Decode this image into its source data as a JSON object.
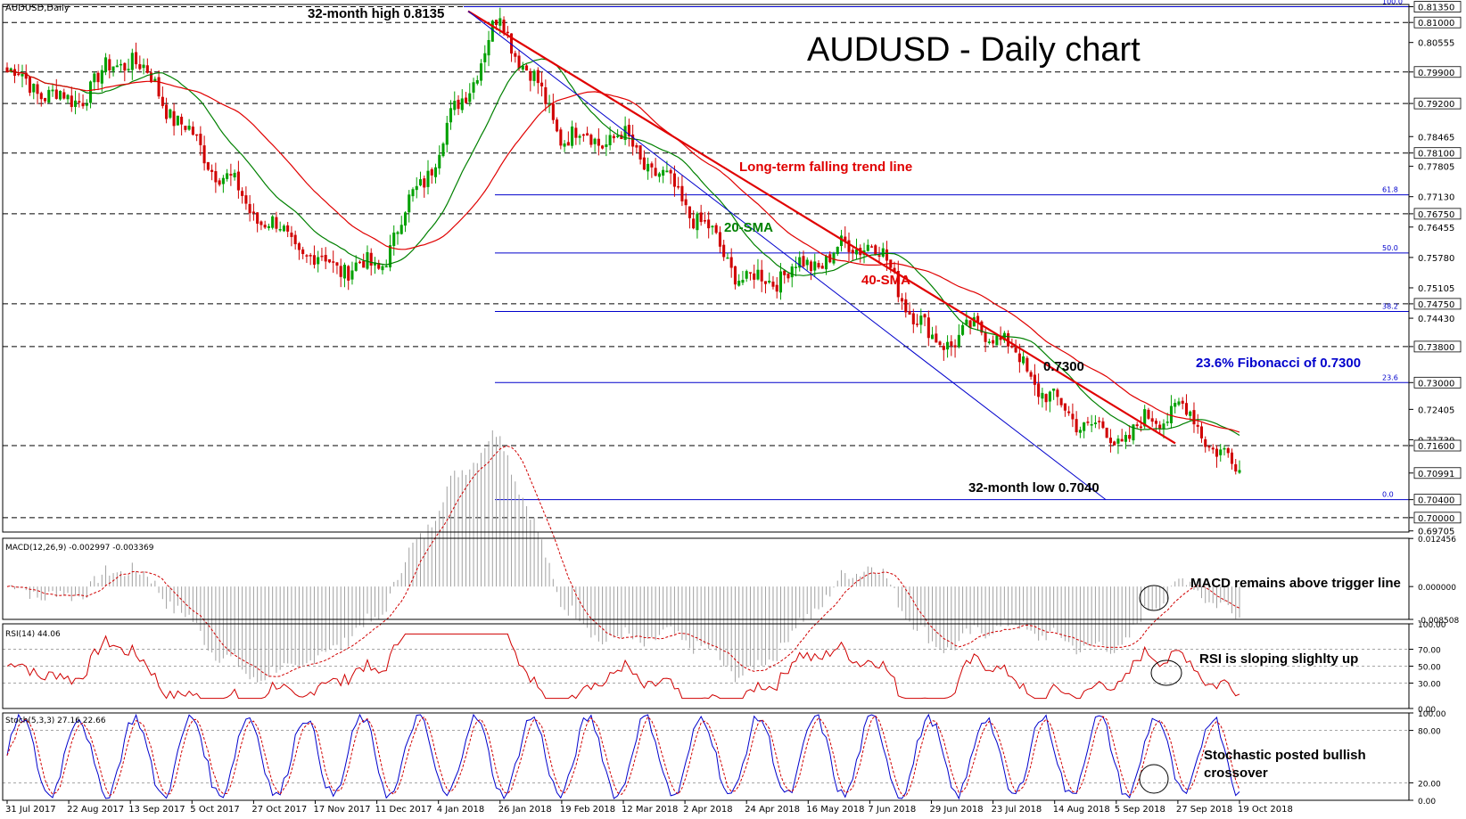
{
  "chart_data": {
    "type": "candlestick",
    "symbol_label": "AUDUSD,Daily",
    "title": "AUDUSD - Daily chart",
    "price_ylim": [
      0.6968,
      0.814
    ],
    "price_ticks": [
      "0.81350",
      "0.81000",
      "0.80555",
      "0.79900",
      "0.79200",
      "0.78465",
      "0.78100",
      "0.77805",
      "0.77130",
      "0.76750",
      "0.76455",
      "0.75780",
      "0.75105",
      "0.74750",
      "0.74430",
      "0.73800",
      "0.73000",
      "0.72405",
      "0.71730",
      "0.71600",
      "0.70991",
      "0.70400",
      "0.70000",
      "0.69705"
    ],
    "highlighted_ticks": [
      "0.81350",
      "0.81000",
      "0.79900",
      "0.79200",
      "0.78100",
      "0.76750",
      "0.74750",
      "0.73800",
      "0.73000",
      "0.71600",
      "0.70991",
      "0.70400",
      "0.70000"
    ],
    "horizontal_levels": [
      0.8135,
      0.81,
      0.799,
      0.792,
      0.781,
      0.7675,
      0.7475,
      0.738,
      0.716,
      0.7
    ],
    "fibonacci": {
      "levels": [
        {
          "label": "100.0",
          "value": 0.8135
        },
        {
          "label": "61.8",
          "value": 0.7717
        },
        {
          "label": "50.0",
          "value": 0.7588
        },
        {
          "label": "38.2",
          "value": 0.7458
        },
        {
          "label": "23.6",
          "value": 0.73
        },
        {
          "label": "0.0",
          "value": 0.704
        }
      ]
    },
    "x_labels": [
      "31 Jul 2017",
      "22 Aug 2017",
      "13 Sep 2017",
      "5 Oct 2017",
      "27 Oct 2017",
      "17 Nov 2017",
      "11 Dec 2017",
      "4 Jan 2018",
      "26 Jan 2018",
      "19 Feb 2018",
      "12 Mar 2018",
      "2 Apr 2018",
      "24 Apr 2018",
      "16 May 2018",
      "7 Jun 2018",
      "29 Jun 2018",
      "23 Jul 2018",
      "14 Aug 2018",
      "5 Sep 2018",
      "27 Sep 2018",
      "19 Oct 2018"
    ],
    "key_points": [
      {
        "date": "31 Jul 2017",
        "close": 0.799
      },
      {
        "date": "22 Aug 2017",
        "close": 0.792
      },
      {
        "date": "13 Sep 2017",
        "close": 0.803
      },
      {
        "date": "5 Oct 2017",
        "close": 0.784
      },
      {
        "date": "27 Oct 2017",
        "close": 0.768
      },
      {
        "date": "17 Nov 2017",
        "close": 0.757
      },
      {
        "date": "11 Dec 2017",
        "close": 0.755
      },
      {
        "date": "4 Jan 2018",
        "close": 0.782
      },
      {
        "date": "26 Jan 2018",
        "close": 0.811
      },
      {
        "date": "19 Feb 2018",
        "close": 0.785
      },
      {
        "date": "12 Mar 2018",
        "close": 0.784
      },
      {
        "date": "2 Apr 2018",
        "close": 0.77
      },
      {
        "date": "24 Apr 2018",
        "close": 0.752
      },
      {
        "date": "16 May 2018",
        "close": 0.756
      },
      {
        "date": "7 Jun 2018",
        "close": 0.762
      },
      {
        "date": "29 Jun 2018",
        "close": 0.739
      },
      {
        "date": "23 Jul 2018",
        "close": 0.742
      },
      {
        "date": "14 Aug 2018",
        "close": 0.725
      },
      {
        "date": "5 Sep 2018",
        "close": 0.717
      },
      {
        "date": "27 Sep 2018",
        "close": 0.725
      },
      {
        "date": "19 Oct 2018",
        "close": 0.71
      }
    ],
    "annotations": {
      "high": "32-month high 0.8135",
      "low": "32-month low 0.7040",
      "trend": "Long-term falling trend line",
      "sma20": "20-SMA",
      "sma40": "40-SMA",
      "level": "0.7300",
      "fib_note": "23.6% Fibonacci of 0.7300"
    },
    "macd": {
      "label": "MACD(12,26,9) -0.002997 -0.003369",
      "ticks": [
        "0.012456",
        "0.000000",
        "-0.008508"
      ],
      "ylim": [
        -0.0085,
        0.0125
      ],
      "note": "MACD remains above trigger line"
    },
    "rsi": {
      "label": "RSI(14) 44.06",
      "ticks": [
        "100.00",
        "70.00",
        "50.00",
        "30.00",
        "0.00"
      ],
      "ylim": [
        0,
        100
      ],
      "note": "RSI is sloping slighlty up"
    },
    "stoch": {
      "label": "Stoch(5,3,3) 27.16 22.66",
      "ticks": [
        "100.00",
        "80.00",
        "20.00",
        "0.00"
      ],
      "ylim": [
        0,
        100
      ],
      "note": "Stochastic posted bullish crossover"
    }
  },
  "colors": {
    "bull": "#00a000",
    "bear": "#d00000",
    "sma20": "#008000",
    "sma40": "#e00000",
    "trend": "#e00000",
    "channel": "#0000cc",
    "fib": "#0000cc",
    "rsi": "#d00000",
    "stoch_main": "#0000cc",
    "stoch_signal": "#d00000",
    "macd_hist": "#a0a0a0",
    "macd_signal": "#d00000"
  }
}
